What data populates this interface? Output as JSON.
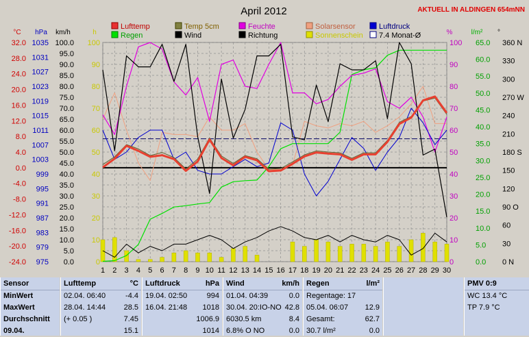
{
  "chart_data": {
    "type": "line",
    "title": "April 2012",
    "station_note": "AKTUELL IN ALDINGEN 654mNN",
    "categories": [
      1,
      2,
      3,
      4,
      5,
      6,
      7,
      8,
      9,
      10,
      11,
      12,
      13,
      14,
      15,
      16,
      17,
      18,
      19,
      20,
      21,
      22,
      23,
      24,
      25,
      26,
      27,
      28,
      29,
      30
    ],
    "axes": {
      "temp": {
        "unit": "°C",
        "ticks": [
          "32.0",
          "28.0",
          "24.0",
          "20.0",
          "16.0",
          "12.0",
          "8.0",
          "4.0",
          "0.0",
          "-4.0",
          "-8.0",
          "-12.0",
          "-16.0",
          "-20.0",
          "-24.0"
        ],
        "ylim": [
          -24,
          32
        ],
        "color": "#d00000"
      },
      "pressure": {
        "unit": "hPa",
        "ticks": [
          "1035",
          "1031",
          "1027",
          "1023",
          "1019",
          "1015",
          "1011",
          "1007",
          "1003",
          "999",
          "995",
          "991",
          "987",
          "983",
          "979",
          "975"
        ],
        "ylim": [
          975,
          1035
        ],
        "color": "#0000c0"
      },
      "wind": {
        "unit": "km/h",
        "ticks": [
          "100.0",
          "95.0",
          "90.0",
          "85.0",
          "80.0",
          "75.0",
          "70.0",
          "65.0",
          "60.0",
          "55.0",
          "50.0",
          "45.0",
          "40.0",
          "35.0",
          "30.0",
          "25.0",
          "20.0",
          "15.0",
          "10.0",
          "5.0",
          "0.0"
        ],
        "ylim": [
          0,
          100
        ]
      },
      "sun": {
        "unit": "h",
        "ticks": [
          "100",
          "90",
          "80",
          "70",
          "60",
          "50",
          "40",
          "30",
          "20",
          "10",
          "0"
        ],
        "ylim": [
          0,
          100
        ],
        "color": "#c8c800"
      },
      "humidity": {
        "unit": "%",
        "ticks": [
          "100",
          "90",
          "80",
          "70",
          "60",
          "50",
          "40",
          "30",
          "20",
          "10",
          "0"
        ],
        "ylim": [
          0,
          100
        ],
        "color": "#c000c0"
      },
      "rain": {
        "unit": "l/m²",
        "ticks": [
          "65.0",
          "60.0",
          "55.0",
          "50.0",
          "45.0",
          "40.0",
          "35.0",
          "30.0",
          "25.0",
          "20.0",
          "15.0",
          "10.0",
          "5.0",
          "0.0"
        ],
        "ylim": [
          0,
          65
        ],
        "color": "#00b000"
      },
      "direction": {
        "unit": "°",
        "ticks": [
          "360 N",
          "330",
          "300",
          "270 W",
          "240",
          "210",
          "180 S",
          "150",
          "120",
          "90 O",
          "60",
          "30",
          "0 N"
        ],
        "ylim": [
          0,
          360
        ]
      }
    },
    "legend": [
      {
        "name": "Lufttemp",
        "color": "#e83030",
        "border": "#900000"
      },
      {
        "name": "Temp 5cm",
        "color": "#808040",
        "border": "#404000"
      },
      {
        "name": "Feuchte",
        "color": "#e000e0",
        "border": "#800080"
      },
      {
        "name": "Solarsensor",
        "color": "#f0a080",
        "border": "#a06040"
      },
      {
        "name": "Luftdruck",
        "color": "#0000d0",
        "border": "#000080"
      },
      {
        "name": "Regen",
        "color": "#00e000",
        "border": "#008000"
      },
      {
        "name": "Wind",
        "color": "#000000",
        "border": "#000000"
      },
      {
        "name": "Richtung",
        "color": "#000000",
        "border": "#000000"
      },
      {
        "name": "Sonnenschein",
        "color": "#e0e000",
        "border": "#909000"
      },
      {
        "name": "7.4 Monat-Ø",
        "color": "#ffffff",
        "border": "#000080"
      }
    ],
    "series": [
      {
        "name": "Lufttemp",
        "axis": "temp",
        "values": [
          0.1,
          2.3,
          5.6,
          4.3,
          2.8,
          3.2,
          2.2,
          -0.8,
          1.6,
          7.2,
          2.5,
          0.6,
          2.8,
          1.9,
          -0.9,
          -0.7,
          1.0,
          2.9,
          3.9,
          3.6,
          3.4,
          2.0,
          3.4,
          3.4,
          6.6,
          11.2,
          12.8,
          17.2,
          18.2,
          14.0
        ]
      },
      {
        "name": "Temp 5cm",
        "axis": "temp",
        "values": [
          0.8,
          2.8,
          5.9,
          4.8,
          3.1,
          3.9,
          2.6,
          -0.3,
          2.2,
          7.6,
          3.0,
          1.1,
          3.1,
          2.3,
          -0.4,
          -0.2,
          1.5,
          3.3,
          4.3,
          4.0,
          3.8,
          2.4,
          3.8,
          3.8,
          7.0,
          11.6,
          13.1,
          17.0,
          17.8,
          13.6
        ]
      },
      {
        "name": "Feuchte",
        "axis": "humidity",
        "values": [
          67,
          58,
          80,
          98,
          100,
          97,
          82,
          76,
          84,
          64,
          90,
          92,
          80,
          79,
          90,
          100,
          77,
          77,
          72,
          74,
          80,
          85,
          86,
          88,
          73,
          70,
          75,
          66,
          50,
          66
        ]
      },
      {
        "name": "Solarsensor",
        "axis": "humidity",
        "values": [
          65,
          77,
          60,
          45,
          37,
          59,
          58,
          58,
          57,
          66,
          60,
          60,
          63,
          50,
          42,
          42,
          44,
          64,
          62,
          61,
          63,
          62,
          64,
          59,
          62,
          66,
          72,
          80,
          63,
          63
        ]
      },
      {
        "name": "Luftdruck",
        "axis": "pressure",
        "values": [
          1011,
          1003,
          1005,
          1009,
          1011,
          1011,
          1003,
          1005,
          1000,
          999,
          999,
          1001,
          1003,
          1001,
          1002,
          1013,
          1011,
          999,
          993,
          997,
          1003,
          1009,
          1006,
          1000,
          1005,
          1009,
          1017,
          1013,
          1007,
          1011
        ]
      },
      {
        "name": "Regen",
        "axis": "rain",
        "values": [
          0.1,
          0.3,
          1.8,
          5.1,
          12.6,
          14.3,
          16.2,
          16.6,
          17.1,
          17.5,
          22.1,
          23.7,
          24.0,
          24.2,
          28.2,
          33.5,
          35.0,
          35.0,
          35.0,
          35.0,
          38.4,
          55.5,
          56.9,
          57.5,
          61.2,
          62.7,
          62.7,
          62.7,
          62.7,
          62.7
        ]
      },
      {
        "name": "Wind",
        "axis": "wind",
        "values": [
          5,
          2,
          8,
          4,
          7,
          5,
          8,
          8,
          10,
          12,
          10,
          6,
          9,
          11,
          14,
          16,
          14,
          11,
          10,
          12,
          9,
          12,
          10,
          9,
          12,
          10,
          3,
          6,
          13,
          9
        ]
      },
      {
        "name": "Richtung",
        "axis": "direction",
        "values": [
          315,
          182,
          338,
          320,
          320,
          357,
          296,
          357,
          205,
          112,
          300,
          203,
          250,
          338,
          338,
          357,
          205,
          200,
          290,
          230,
          325,
          315,
          315,
          330,
          235,
          360,
          325,
          175,
          185,
          73
        ]
      },
      {
        "name": "Sonnenschein",
        "axis": "sun",
        "values": [
          10,
          11,
          5,
          1,
          1,
          2,
          4,
          5,
          4,
          4,
          2,
          6,
          7,
          3,
          0,
          0,
          9,
          7,
          10,
          9,
          7,
          8,
          8,
          7,
          9,
          7,
          10,
          13,
          9,
          8
        ]
      }
    ],
    "monthly_mean_temp": 7.4,
    "moon_markers": [
      {
        "day": 8,
        "phase": "full"
      },
      {
        "day": 22,
        "phase": "new"
      }
    ]
  },
  "table": {
    "sensor": {
      "header": "Sensor",
      "rows": [
        "MinWert",
        "MaxWert",
        "Durchschnitt",
        "09.04."
      ]
    },
    "lufttemp": {
      "header": "Lufttemp",
      "unit": "°C",
      "rows": [
        [
          "02.04.  06:40",
          "-4.4"
        ],
        [
          "28.04.  14:44",
          "28.5"
        ],
        [
          "(+ 0.05 )",
          "7.45"
        ],
        [
          "",
          "15.1"
        ]
      ]
    },
    "luftdruck": {
      "header": "Luftdruck",
      "unit": "hPa",
      "rows": [
        [
          "19.04.  02:50",
          "994"
        ],
        [
          "16.04.  21:48",
          "1018"
        ],
        [
          "",
          "1006.9"
        ],
        [
          "",
          "1014"
        ]
      ]
    },
    "wind": {
      "header": "Wind",
      "unit": "km/h",
      "rows": [
        [
          "01.04.  04:39",
          "0.0"
        ],
        [
          "30.04.  20:IO-NO",
          "42.8"
        ],
        [
          "6030.5 km",
          "8.4"
        ],
        [
          "6.8% O NO",
          "0.0"
        ]
      ]
    },
    "regen": {
      "header": "Regen",
      "unit": "l/m²",
      "rows": [
        [
          "Regentage: 17",
          ""
        ],
        [
          "05.04.  06:07",
          "12.9"
        ],
        [
          "Gesamt:",
          "62.7"
        ],
        [
          "30.7 l/m²",
          "0.0"
        ]
      ]
    },
    "pmv": {
      "header": "PMV 0:9",
      "rows": [
        "WC 13.4 °C",
        "TP 7.9 °C"
      ]
    }
  }
}
